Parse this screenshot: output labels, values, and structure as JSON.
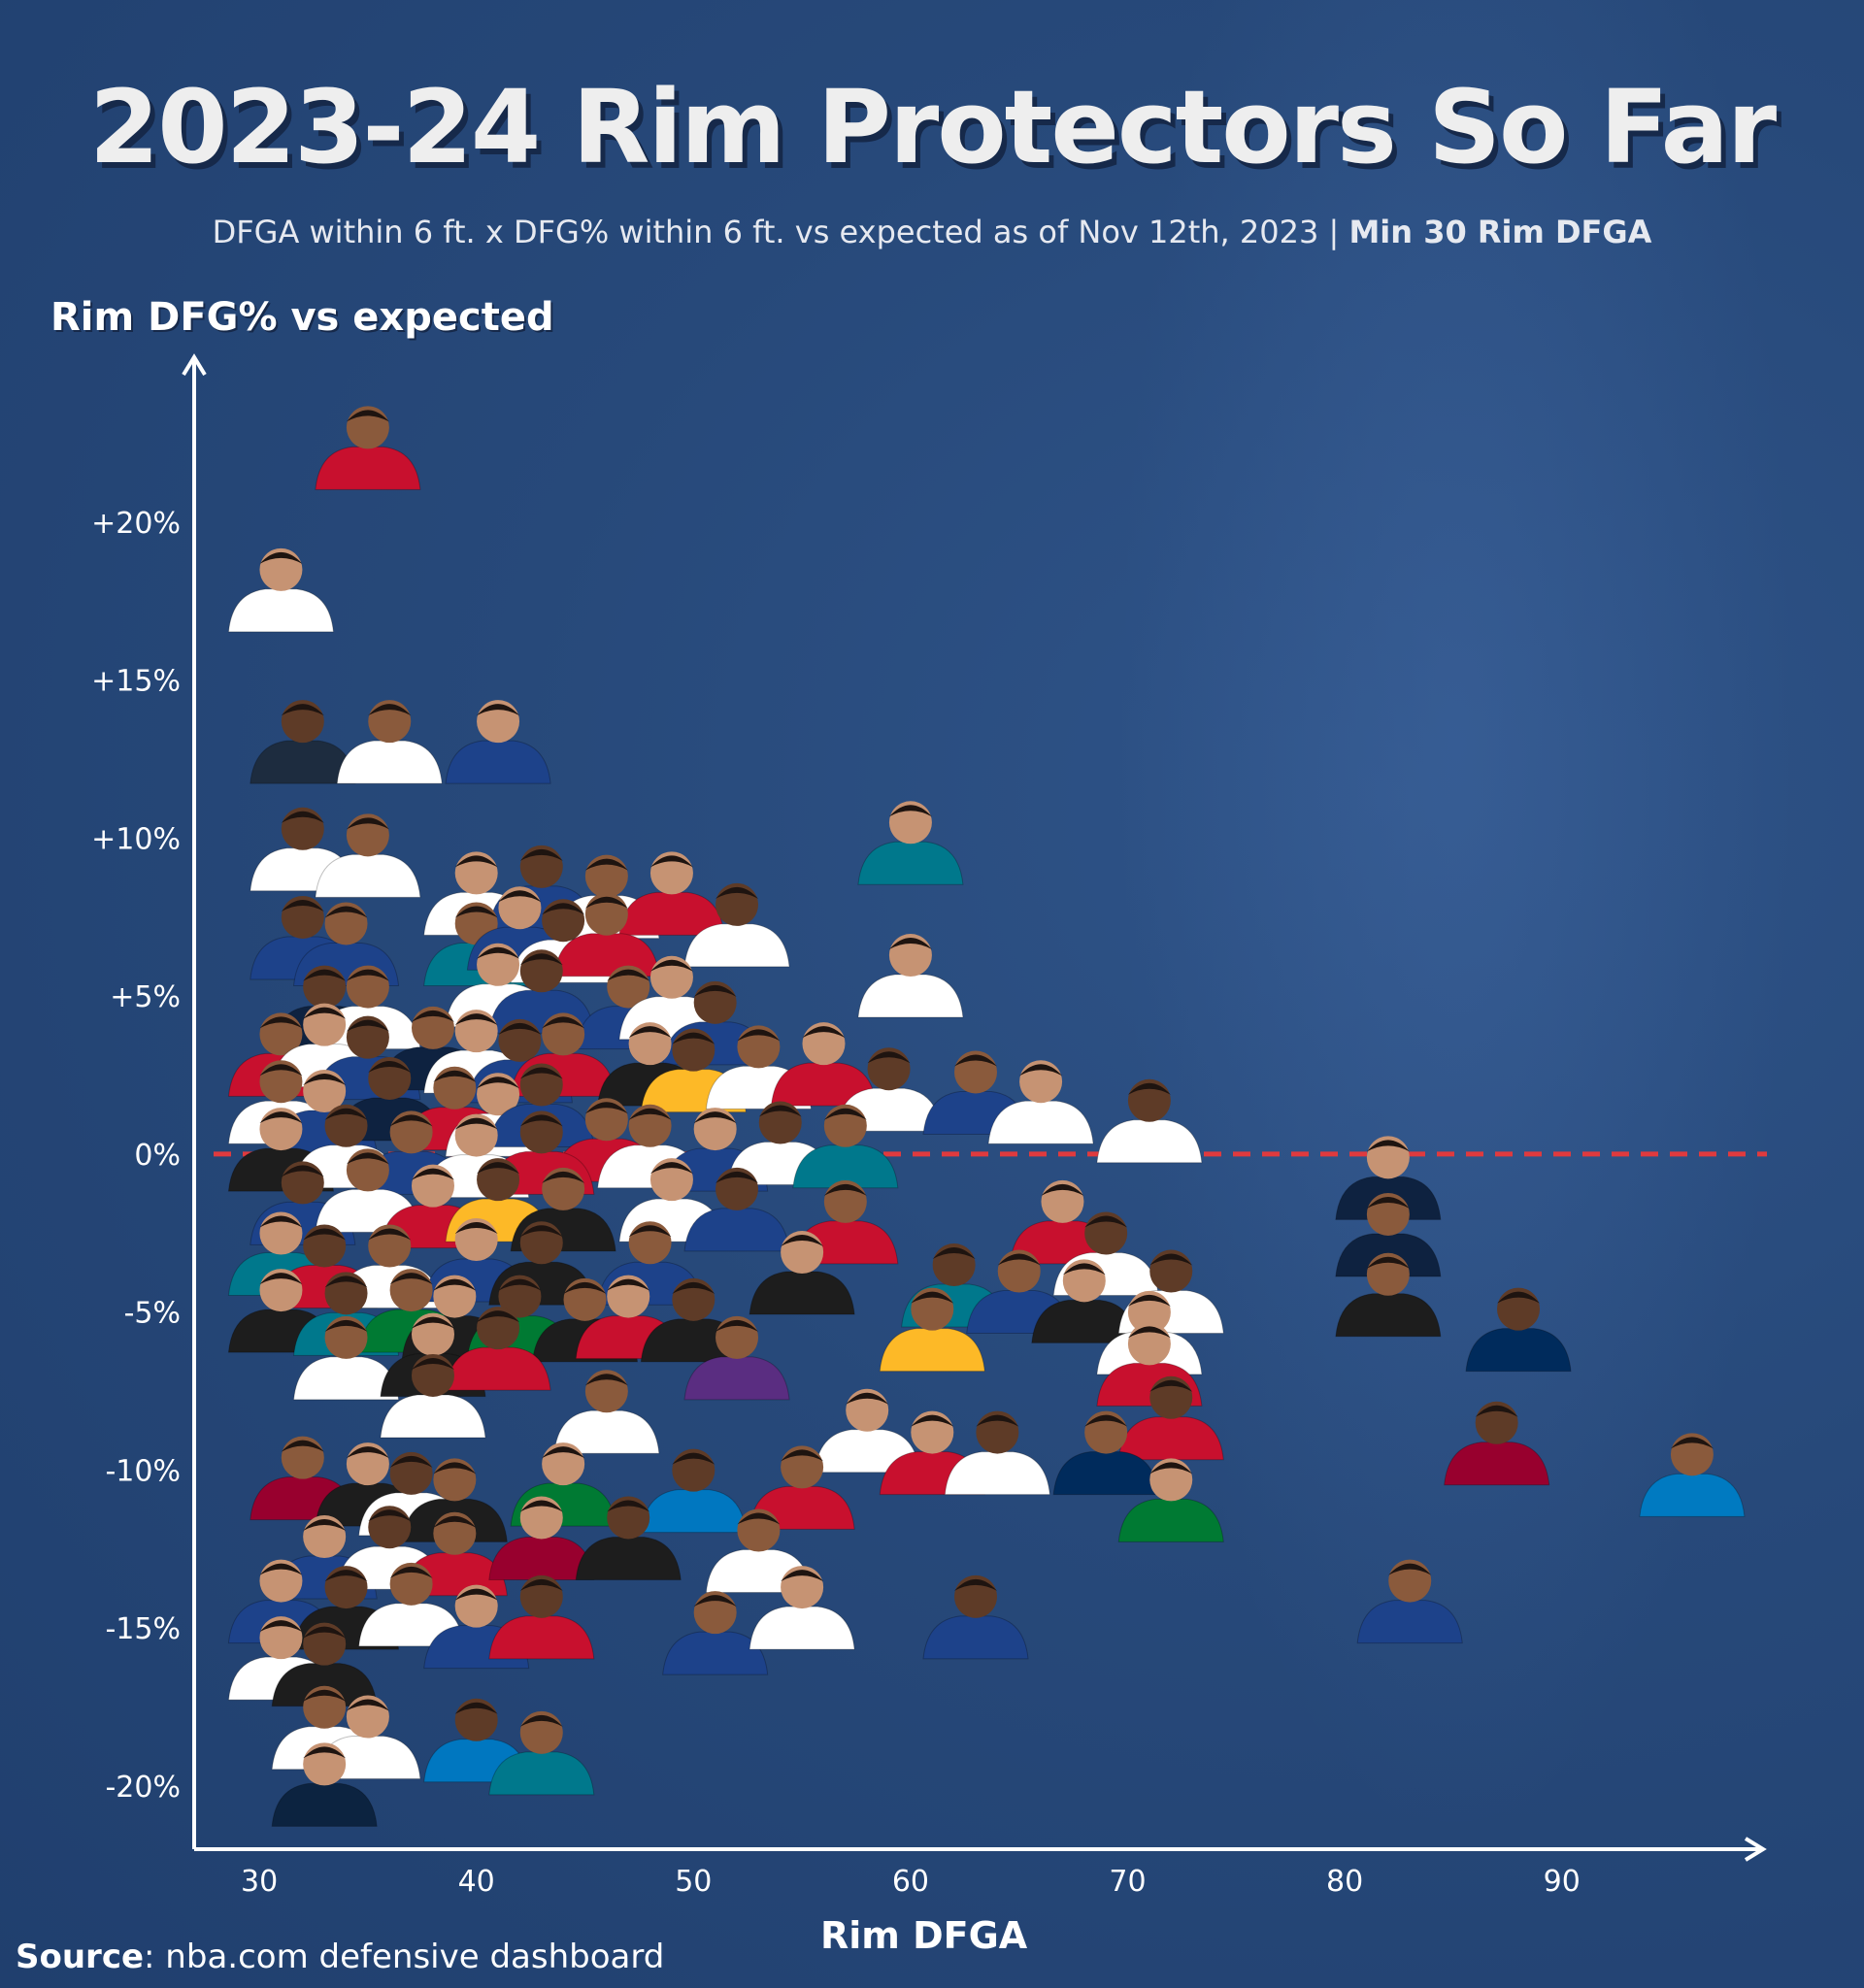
{
  "header": {
    "title": "2023-24 Rim Protectors So Far",
    "subtitle_main": "DFGA within 6 ft. x DFG% within 6 ft. vs expected as of Nov 12th, 2023 | ",
    "subtitle_bold": "Min 30 Rim DFGA",
    "subtitle_x": "x"
  },
  "footer": {
    "source_label": "Source",
    "source_text": ": nba.com defensive dashboard"
  },
  "colors": {
    "background": "#27497a",
    "axis": "#ffffff",
    "reference_line": "#e03a3e"
  },
  "chart_data": {
    "type": "scatter",
    "title": "2023-24 Rim Protectors So Far",
    "xlabel": "Rim DFGA",
    "ylabel": "Rim DFG% vs expected",
    "x_ticks": [
      30,
      40,
      50,
      60,
      70,
      80,
      90
    ],
    "y_ticks": [
      20,
      15,
      10,
      5,
      0,
      -5,
      -10,
      -15,
      -20
    ],
    "y_tick_labels": [
      "+20%",
      "+15%",
      "+10%",
      "+5%",
      "0%",
      "-5%",
      "-10%",
      "-15%",
      "-20%"
    ],
    "xlim": [
      27,
      99
    ],
    "ylim": [
      -22,
      25
    ],
    "reference_line": {
      "y": 0,
      "style": "dashed",
      "color": "#e03a3e"
    },
    "marker": "player headshot",
    "points": [
      {
        "x": 35,
        "y": 22.5,
        "jersey": "#c8102e"
      },
      {
        "x": 31,
        "y": 18.0,
        "jersey": "#ffffff"
      },
      {
        "x": 32,
        "y": 13.2,
        "jersey": "#1d2c3f"
      },
      {
        "x": 36,
        "y": 13.2,
        "jersey": "#ffffff"
      },
      {
        "x": 41,
        "y": 13.2,
        "jersey": "#1d428a"
      },
      {
        "x": 32,
        "y": 9.8,
        "jersey": "#ffffff"
      },
      {
        "x": 35,
        "y": 9.6,
        "jersey": "#ffffff"
      },
      {
        "x": 60,
        "y": 10.0,
        "jersey": "#00788c"
      },
      {
        "x": 32,
        "y": 7.0,
        "jersey": "#1d428a"
      },
      {
        "x": 34,
        "y": 6.8,
        "jersey": "#1d428a"
      },
      {
        "x": 40,
        "y": 8.4,
        "jersey": "#ffffff"
      },
      {
        "x": 43,
        "y": 8.6,
        "jersey": "#1d428a"
      },
      {
        "x": 46,
        "y": 8.3,
        "jersey": "#ffffff"
      },
      {
        "x": 49,
        "y": 8.4,
        "jersey": "#c8102e"
      },
      {
        "x": 52,
        "y": 7.4,
        "jersey": "#ffffff"
      },
      {
        "x": 40,
        "y": 6.8,
        "jersey": "#00788c"
      },
      {
        "x": 42,
        "y": 7.3,
        "jersey": "#1d428a"
      },
      {
        "x": 44,
        "y": 6.9,
        "jersey": "#ffffff"
      },
      {
        "x": 46,
        "y": 7.1,
        "jersey": "#c8102e"
      },
      {
        "x": 60,
        "y": 5.8,
        "jersey": "#ffffff"
      },
      {
        "x": 33,
        "y": 4.8,
        "jersey": "#0e2240"
      },
      {
        "x": 35,
        "y": 4.8,
        "jersey": "#ffffff"
      },
      {
        "x": 41,
        "y": 5.5,
        "jersey": "#ffffff"
      },
      {
        "x": 43,
        "y": 5.3,
        "jersey": "#1d428a"
      },
      {
        "x": 47,
        "y": 4.8,
        "jersey": "#1d428a"
      },
      {
        "x": 49,
        "y": 5.1,
        "jersey": "#ffffff"
      },
      {
        "x": 51,
        "y": 4.3,
        "jersey": "#1d428a"
      },
      {
        "x": 31,
        "y": 3.3,
        "jersey": "#c8102e"
      },
      {
        "x": 33,
        "y": 3.6,
        "jersey": "#ffffff"
      },
      {
        "x": 35,
        "y": 3.2,
        "jersey": "#1d428a"
      },
      {
        "x": 38,
        "y": 3.5,
        "jersey": "#0e2240"
      },
      {
        "x": 40,
        "y": 3.4,
        "jersey": "#ffffff"
      },
      {
        "x": 42,
        "y": 3.1,
        "jersey": "#1d428a"
      },
      {
        "x": 44,
        "y": 3.3,
        "jersey": "#c8102e"
      },
      {
        "x": 48,
        "y": 3.0,
        "jersey": "#1d1d1d"
      },
      {
        "x": 50,
        "y": 2.8,
        "jersey": "#fdb927"
      },
      {
        "x": 53,
        "y": 2.9,
        "jersey": "#ffffff"
      },
      {
        "x": 56,
        "y": 3.0,
        "jersey": "#c8102e"
      },
      {
        "x": 59,
        "y": 2.2,
        "jersey": "#ffffff"
      },
      {
        "x": 63,
        "y": 2.1,
        "jersey": "#1d428a"
      },
      {
        "x": 66,
        "y": 1.8,
        "jersey": "#ffffff"
      },
      {
        "x": 71,
        "y": 1.2,
        "jersey": "#ffffff"
      },
      {
        "x": 31,
        "y": 1.8,
        "jersey": "#ffffff"
      },
      {
        "x": 33,
        "y": 1.5,
        "jersey": "#1d428a"
      },
      {
        "x": 36,
        "y": 1.9,
        "jersey": "#0e2240"
      },
      {
        "x": 39,
        "y": 1.6,
        "jersey": "#c8102e"
      },
      {
        "x": 41,
        "y": 1.4,
        "jersey": "#ffffff"
      },
      {
        "x": 43,
        "y": 1.7,
        "jersey": "#1d428a"
      },
      {
        "x": 46,
        "y": 0.6,
        "jersey": "#c8102e"
      },
      {
        "x": 31,
        "y": 0.3,
        "jersey": "#1d1d1d"
      },
      {
        "x": 34,
        "y": 0.4,
        "jersey": "#ffffff"
      },
      {
        "x": 37,
        "y": 0.2,
        "jersey": "#1d428a"
      },
      {
        "x": 40,
        "y": 0.1,
        "jersey": "#ffffff"
      },
      {
        "x": 43,
        "y": 0.2,
        "jersey": "#c8102e"
      },
      {
        "x": 48,
        "y": 0.4,
        "jersey": "#ffffff"
      },
      {
        "x": 51,
        "y": 0.3,
        "jersey": "#1d428a"
      },
      {
        "x": 54,
        "y": 0.5,
        "jersey": "#ffffff"
      },
      {
        "x": 57,
        "y": 0.4,
        "jersey": "#00788c"
      },
      {
        "x": 82,
        "y": -0.6,
        "jersey": "#0e2240"
      },
      {
        "x": 32,
        "y": -1.4,
        "jersey": "#1d428a"
      },
      {
        "x": 35,
        "y": -1.0,
        "jersey": "#ffffff"
      },
      {
        "x": 38,
        "y": -1.5,
        "jersey": "#c8102e"
      },
      {
        "x": 41,
        "y": -1.3,
        "jersey": "#fdb927"
      },
      {
        "x": 44,
        "y": -1.6,
        "jersey": "#1d1d1d"
      },
      {
        "x": 49,
        "y": -1.3,
        "jersey": "#ffffff"
      },
      {
        "x": 52,
        "y": -1.6,
        "jersey": "#1d428a"
      },
      {
        "x": 57,
        "y": -2.0,
        "jersey": "#c8102e"
      },
      {
        "x": 67,
        "y": -2.0,
        "jersey": "#c8102e"
      },
      {
        "x": 69,
        "y": -3.0,
        "jersey": "#ffffff"
      },
      {
        "x": 82,
        "y": -2.4,
        "jersey": "#0e2240"
      },
      {
        "x": 31,
        "y": -3.0,
        "jersey": "#00788c"
      },
      {
        "x": 33,
        "y": -3.4,
        "jersey": "#c8102e"
      },
      {
        "x": 36,
        "y": -3.4,
        "jersey": "#ffffff"
      },
      {
        "x": 40,
        "y": -3.2,
        "jersey": "#1d428a"
      },
      {
        "x": 43,
        "y": -3.3,
        "jersey": "#1d1d1d"
      },
      {
        "x": 48,
        "y": -3.3,
        "jersey": "#1d428a"
      },
      {
        "x": 55,
        "y": -3.6,
        "jersey": "#1d1d1d"
      },
      {
        "x": 62,
        "y": -4.0,
        "jersey": "#00788c"
      },
      {
        "x": 65,
        "y": -4.2,
        "jersey": "#1d428a"
      },
      {
        "x": 68,
        "y": -4.5,
        "jersey": "#1d1d1d"
      },
      {
        "x": 72,
        "y": -4.2,
        "jersey": "#ffffff"
      },
      {
        "x": 82,
        "y": -4.3,
        "jersey": "#1d1d1d"
      },
      {
        "x": 31,
        "y": -4.8,
        "jersey": "#1d1d1d"
      },
      {
        "x": 34,
        "y": -4.9,
        "jersey": "#00788c"
      },
      {
        "x": 37,
        "y": -4.8,
        "jersey": "#007a33"
      },
      {
        "x": 39,
        "y": -5.0,
        "jersey": "#1d1d1d"
      },
      {
        "x": 42,
        "y": -5.0,
        "jersey": "#007a33"
      },
      {
        "x": 45,
        "y": -5.1,
        "jersey": "#1d1d1d"
      },
      {
        "x": 47,
        "y": -5.0,
        "jersey": "#c8102e"
      },
      {
        "x": 50,
        "y": -5.1,
        "jersey": "#1d1d1d"
      },
      {
        "x": 61,
        "y": -5.4,
        "jersey": "#fdb927"
      },
      {
        "x": 71,
        "y": -5.5,
        "jersey": "#ffffff"
      },
      {
        "x": 88,
        "y": -5.4,
        "jersey": "#002b5c"
      },
      {
        "x": 34,
        "y": -6.3,
        "jersey": "#ffffff"
      },
      {
        "x": 38,
        "y": -6.2,
        "jersey": "#1d1d1d"
      },
      {
        "x": 41,
        "y": -6.0,
        "jersey": "#c8102e"
      },
      {
        "x": 52,
        "y": -6.3,
        "jersey": "#5a2d81"
      },
      {
        "x": 71,
        "y": -6.5,
        "jersey": "#c8102e"
      },
      {
        "x": 38,
        "y": -7.5,
        "jersey": "#ffffff"
      },
      {
        "x": 46,
        "y": -8.0,
        "jersey": "#ffffff"
      },
      {
        "x": 58,
        "y": -8.6,
        "jersey": "#ffffff"
      },
      {
        "x": 72,
        "y": -8.2,
        "jersey": "#c8102e"
      },
      {
        "x": 32,
        "y": -10.1,
        "jersey": "#98002e"
      },
      {
        "x": 35,
        "y": -10.3,
        "jersey": "#1d1d1d"
      },
      {
        "x": 37,
        "y": -10.6,
        "jersey": "#ffffff"
      },
      {
        "x": 39,
        "y": -10.8,
        "jersey": "#1d1d1d"
      },
      {
        "x": 44,
        "y": -10.3,
        "jersey": "#007a33"
      },
      {
        "x": 50,
        "y": -10.5,
        "jersey": "#0077c0"
      },
      {
        "x": 55,
        "y": -10.4,
        "jersey": "#c8102e"
      },
      {
        "x": 61,
        "y": -9.3,
        "jersey": "#c8102e"
      },
      {
        "x": 64,
        "y": -9.3,
        "jersey": "#ffffff"
      },
      {
        "x": 69,
        "y": -9.3,
        "jersey": "#002b5c"
      },
      {
        "x": 72,
        "y": -10.8,
        "jersey": "#007a33"
      },
      {
        "x": 87,
        "y": -9.0,
        "jersey": "#98002e"
      },
      {
        "x": 96,
        "y": -10.0,
        "jersey": "#007ac1"
      },
      {
        "x": 33,
        "y": -12.6,
        "jersey": "#1d428a"
      },
      {
        "x": 36,
        "y": -12.3,
        "jersey": "#ffffff"
      },
      {
        "x": 39,
        "y": -12.5,
        "jersey": "#c8102e"
      },
      {
        "x": 43,
        "y": -12.0,
        "jersey": "#98002e"
      },
      {
        "x": 47,
        "y": -12.0,
        "jersey": "#1d1d1d"
      },
      {
        "x": 53,
        "y": -12.4,
        "jersey": "#ffffff"
      },
      {
        "x": 31,
        "y": -14.0,
        "jersey": "#1d428a"
      },
      {
        "x": 34,
        "y": -14.2,
        "jersey": "#1d1d1d"
      },
      {
        "x": 37,
        "y": -14.1,
        "jersey": "#ffffff"
      },
      {
        "x": 40,
        "y": -14.8,
        "jersey": "#1d428a"
      },
      {
        "x": 43,
        "y": -14.5,
        "jersey": "#c8102e"
      },
      {
        "x": 51,
        "y": -15.0,
        "jersey": "#1d428a"
      },
      {
        "x": 55,
        "y": -14.2,
        "jersey": "#ffffff"
      },
      {
        "x": 63,
        "y": -14.5,
        "jersey": "#1d428a"
      },
      {
        "x": 83,
        "y": -14.0,
        "jersey": "#1d428a"
      },
      {
        "x": 31,
        "y": -15.8,
        "jersey": "#ffffff"
      },
      {
        "x": 33,
        "y": -16.0,
        "jersey": "#1d1d1d"
      },
      {
        "x": 33,
        "y": -18.0,
        "jersey": "#ffffff"
      },
      {
        "x": 35,
        "y": -18.3,
        "jersey": "#ffffff"
      },
      {
        "x": 40,
        "y": -18.4,
        "jersey": "#0077c0"
      },
      {
        "x": 43,
        "y": -18.8,
        "jersey": "#00788c"
      },
      {
        "x": 33,
        "y": -19.8,
        "jersey": "#0c2340"
      }
    ]
  }
}
